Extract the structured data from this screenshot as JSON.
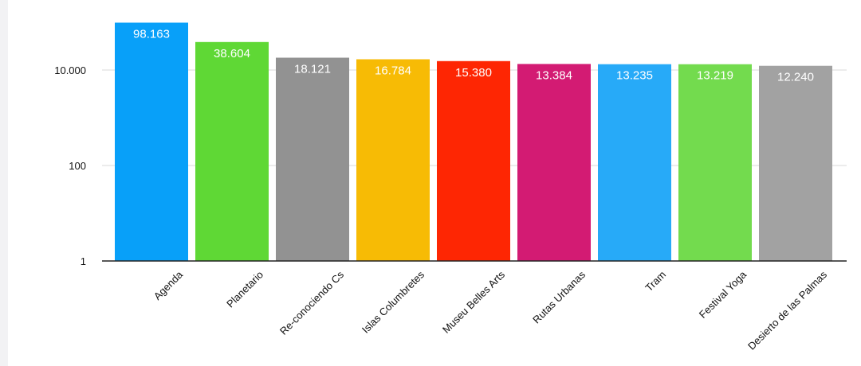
{
  "chart_data": {
    "type": "bar",
    "title": "",
    "xlabel": "",
    "ylabel": "",
    "y_scale": "log",
    "ylim": [
      1,
      100000
    ],
    "y_ticks": [
      1,
      100,
      10000
    ],
    "y_tick_labels": [
      "1",
      "100",
      "10.000"
    ],
    "grid": true,
    "legend": "none",
    "categories": [
      "Agenda",
      "Planetario",
      "Re-conociendo Cs",
      "Islas Columbretes",
      "Museu Belles Arts",
      "Rutas Urbanas",
      "Tram",
      "Festival Yoga",
      "Desierto de las Palmas"
    ],
    "values": [
      98163,
      38604,
      18121,
      16784,
      15380,
      13384,
      13235,
      13219,
      12240
    ],
    "value_labels": [
      "98.163",
      "38.604",
      "18.121",
      "16.784",
      "15.380",
      "13.384",
      "13.235",
      "13.219",
      "12.240"
    ],
    "colors": [
      "#08a0f9",
      "#5fd835",
      "#929292",
      "#f7bb05",
      "#fe2603",
      "#d31b73",
      "#27aaf8",
      "#73db4e",
      "#a2a2a2"
    ]
  }
}
